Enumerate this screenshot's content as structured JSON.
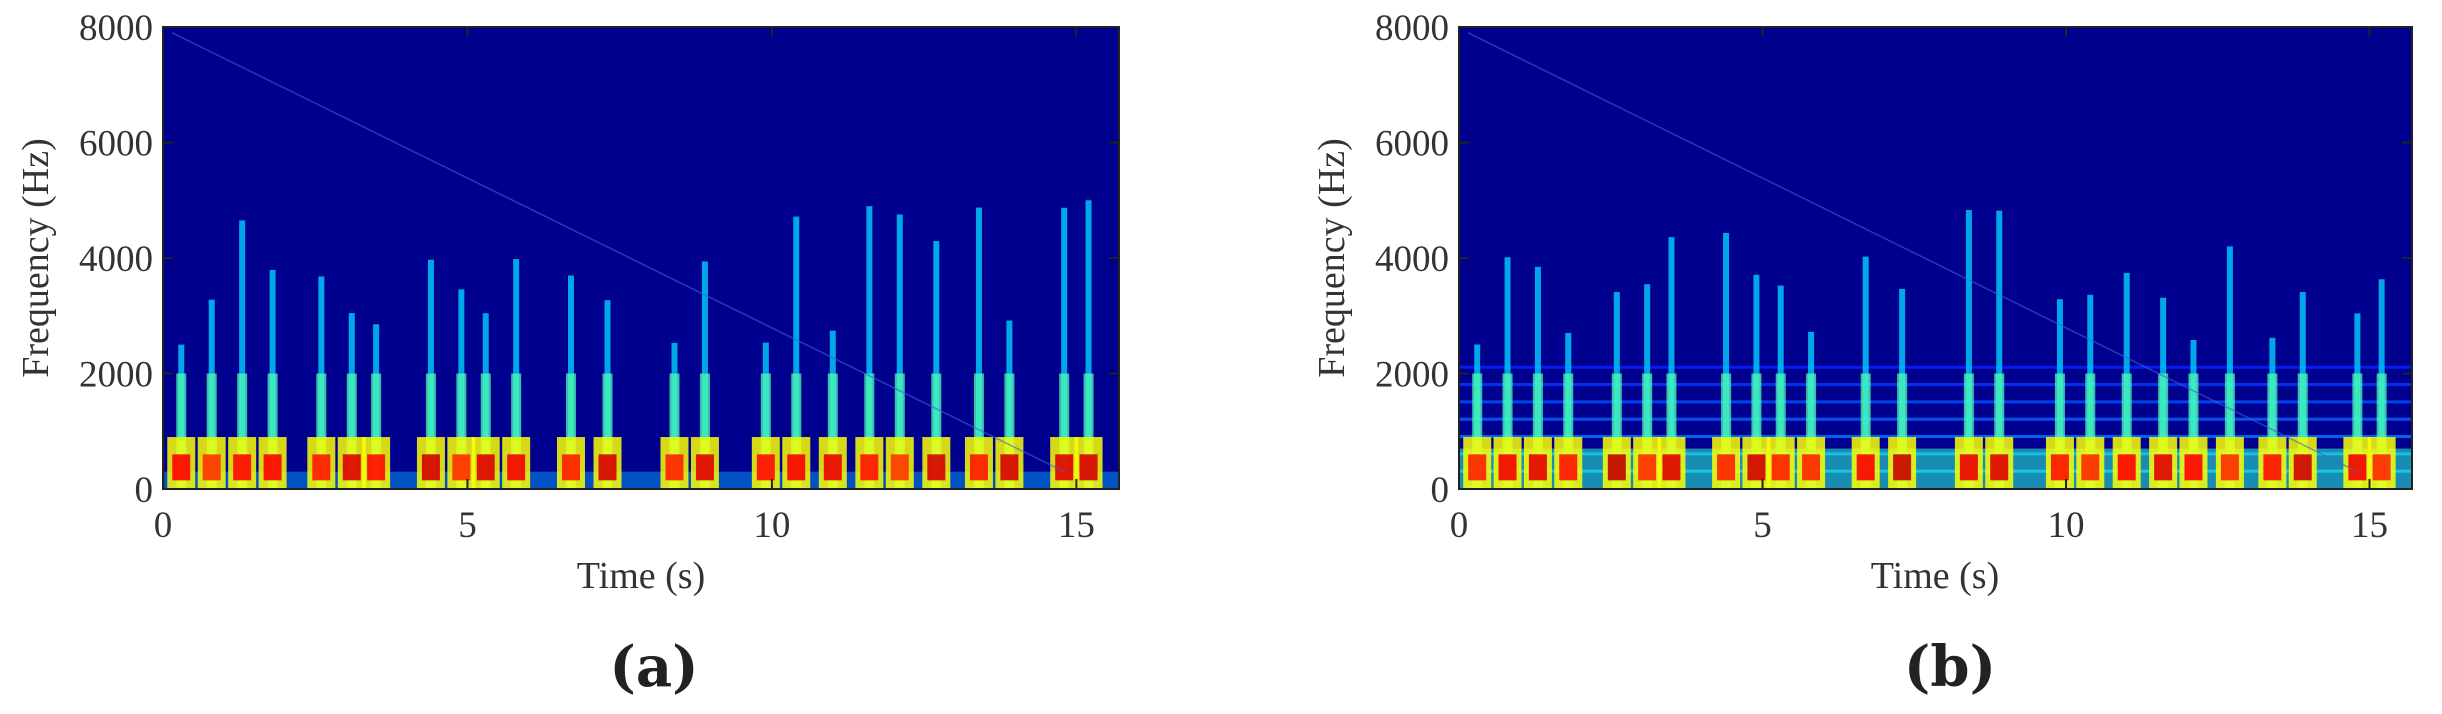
{
  "chart_data": [
    {
      "type": "heatmap",
      "panel_label": "(a)",
      "xlabel": "Time (s)",
      "ylabel": "Frequency (Hz)",
      "xlim": [
        0,
        15.7
      ],
      "ylim": [
        0,
        8000
      ],
      "xticks": [
        0,
        5,
        10,
        15
      ],
      "yticks": [
        0,
        2000,
        4000,
        6000,
        8000
      ],
      "colormap": "jet",
      "description_values": {
        "speech_bursts_s": [
          0.3,
          0.8,
          1.3,
          1.8,
          2.6,
          3.1,
          3.5,
          4.4,
          4.9,
          5.3,
          5.8,
          6.7,
          7.3,
          8.4,
          8.9,
          9.9,
          10.4,
          11.0,
          11.6,
          12.1,
          12.7,
          13.4,
          13.9,
          14.8,
          15.2
        ],
        "silent_gaps_s": [
          [
            2.05,
            2.3
          ],
          [
            3.75,
            4.25
          ],
          [
            7.6,
            8.0
          ],
          [
            14.3,
            14.55
          ]
        ],
        "energy_max_hz": 5000,
        "background_noise": false
      }
    },
    {
      "type": "heatmap",
      "panel_label": "(b)",
      "xlabel": "Time (s)",
      "ylabel": "Frequency (Hz)",
      "xlim": [
        0,
        15.7
      ],
      "ylim": [
        0,
        8000
      ],
      "xticks": [
        0,
        5,
        10,
        15
      ],
      "yticks": [
        0,
        2000,
        4000,
        6000,
        8000
      ],
      "colormap": "jet",
      "description_values": {
        "speech_bursts_s": [
          0.3,
          0.8,
          1.3,
          1.8,
          2.6,
          3.1,
          3.5,
          4.4,
          4.9,
          5.3,
          5.8,
          6.7,
          7.3,
          8.4,
          8.9,
          9.9,
          10.4,
          11.0,
          11.6,
          12.1,
          12.7,
          13.4,
          13.9,
          14.8,
          15.2
        ],
        "harmonic_bands_hz": [
          300,
          600,
          900,
          1200,
          1500,
          1800,
          2100
        ],
        "energy_max_hz": 5000,
        "background_noise": true
      }
    }
  ]
}
